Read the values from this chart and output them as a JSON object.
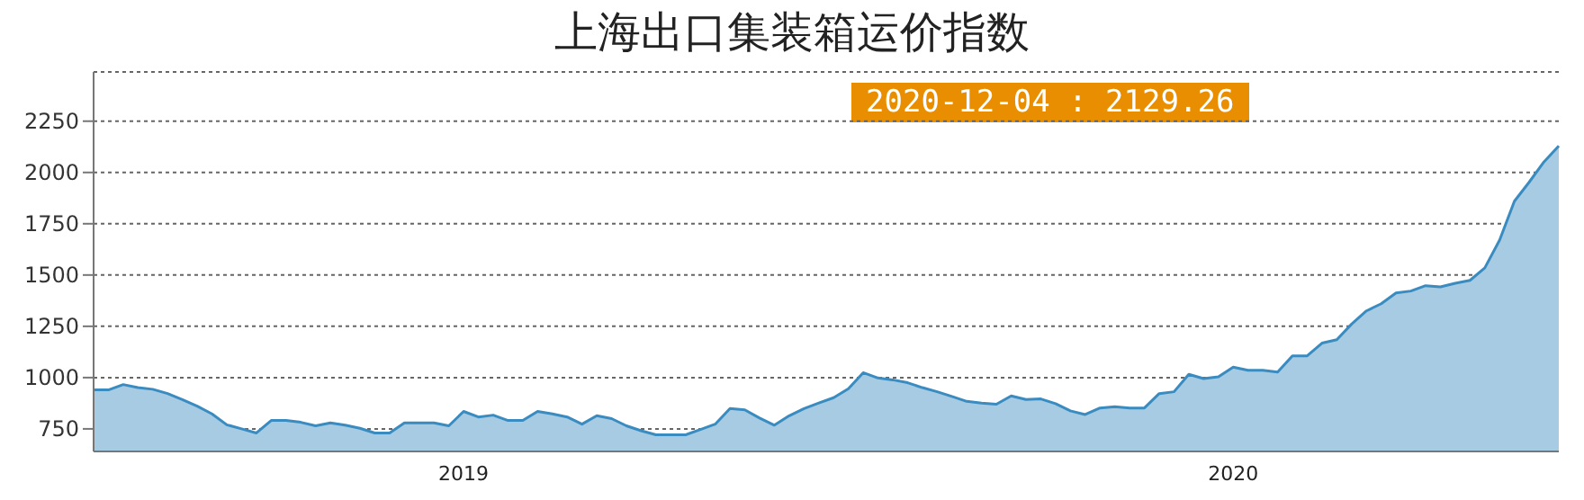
{
  "chart_data": {
    "type": "area",
    "title": "上海出口集装箱运价指数",
    "categories": [
      null,
      null,
      null,
      null,
      null,
      null,
      null,
      null,
      null,
      null,
      null,
      null,
      null,
      null,
      null,
      null,
      null,
      null,
      null,
      null,
      null,
      null,
      null,
      null,
      null,
      "2019",
      null,
      null,
      null,
      null,
      null,
      null,
      null,
      null,
      null,
      null,
      null,
      null,
      null,
      null,
      null,
      null,
      null,
      null,
      null,
      null,
      null,
      null,
      null,
      null,
      null,
      null,
      null,
      null,
      null,
      null,
      null,
      null,
      null,
      null,
      null,
      null,
      null,
      null,
      null,
      null,
      null,
      null,
      null,
      null,
      null,
      null,
      null,
      null,
      null,
      null,
      null,
      "2020",
      null,
      null,
      null,
      null,
      null,
      null,
      null,
      null,
      null,
      null,
      null,
      null,
      null,
      null,
      null,
      null,
      null,
      null,
      null,
      null,
      null,
      null
    ],
    "values": [
      940,
      940,
      966,
      951,
      943,
      922,
      893,
      861,
      823,
      770,
      750,
      730,
      791,
      791,
      782,
      765,
      779,
      768,
      753,
      730,
      730,
      779,
      779,
      779,
      765,
      835,
      808,
      817,
      791,
      791,
      835,
      823,
      808,
      773,
      814,
      800,
      765,
      741,
      721,
      721,
      721,
      747,
      773,
      849,
      843,
      803,
      768,
      814,
      849,
      876,
      902,
      946,
      1024,
      998,
      989,
      975,
      951,
      931,
      908,
      884,
      876,
      870,
      911,
      893,
      896,
      873,
      838,
      820,
      852,
      858,
      852,
      852,
      922,
      931,
      1016,
      995,
      1004,
      1051,
      1036,
      1036,
      1027,
      1106,
      1106,
      1168,
      1185,
      1261,
      1325,
      1360,
      1413,
      1422,
      1448,
      1442,
      1460,
      1474,
      1535,
      1670,
      1860,
      1953,
      2052,
      2129.26
    ],
    "color": "#3a8cc0",
    "ylim": [
      640,
      2490
    ],
    "yticks": [
      750,
      1000,
      1250,
      1500,
      1750,
      2000,
      2250
    ],
    "grid": "y",
    "annotations": [
      "2020-12-04 : 2129.26"
    ]
  }
}
